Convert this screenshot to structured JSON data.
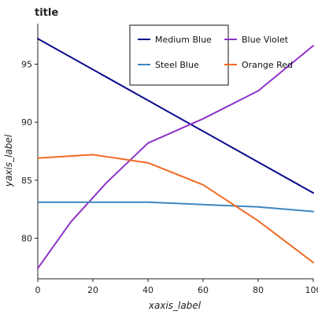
{
  "chart_data": {
    "type": "line",
    "title": "title",
    "xlabel": "xaxis_label",
    "ylabel": "yaxis_label",
    "xlim": [
      0,
      100
    ],
    "ylim": [
      76.5,
      98.5
    ],
    "xticks": [
      0,
      20,
      40,
      60,
      80,
      100
    ],
    "yticks": [
      80,
      85,
      90,
      95
    ],
    "grid": false,
    "legend_position": "top-center",
    "series": [
      {
        "name": "Medium Blue",
        "color": "#0a0a8c",
        "x": [
          0,
          100
        ],
        "y": [
          97.2,
          83.9
        ]
      },
      {
        "name": "Blue Violet",
        "color": "#8e32c8",
        "x": [
          0,
          12,
          25,
          40,
          60,
          80,
          100
        ],
        "y": [
          77.4,
          81.4,
          84.8,
          88.2,
          90.3,
          92.7,
          96.6
        ]
      },
      {
        "name": "Steel Blue",
        "color": "#3d86c0",
        "x": [
          0,
          40,
          80,
          100
        ],
        "y": [
          83.1,
          83.1,
          82.7,
          82.3
        ]
      },
      {
        "name": "Orange Red",
        "color": "#f06a26",
        "x": [
          0,
          20,
          40,
          60,
          80,
          100
        ],
        "y": [
          86.9,
          87.2,
          86.5,
          84.6,
          81.5,
          77.9
        ]
      }
    ]
  }
}
